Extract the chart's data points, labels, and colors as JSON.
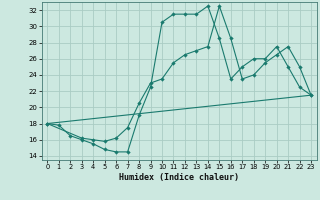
{
  "title": "",
  "xlabel": "Humidex (Indice chaleur)",
  "bg_color": "#cce8e0",
  "grid_color": "#aaccC4",
  "line_color": "#1a7a6e",
  "xlim": [
    -0.5,
    23.5
  ],
  "ylim": [
    13.5,
    33.0
  ],
  "xticks": [
    0,
    1,
    2,
    3,
    4,
    5,
    6,
    7,
    8,
    9,
    10,
    11,
    12,
    13,
    14,
    15,
    16,
    17,
    18,
    19,
    20,
    21,
    22,
    23
  ],
  "yticks": [
    14,
    16,
    18,
    20,
    22,
    24,
    26,
    28,
    30,
    32
  ],
  "line1_x": [
    0,
    1,
    2,
    3,
    4,
    5,
    6,
    7,
    8,
    9,
    10,
    11,
    12,
    13,
    14,
    15,
    16,
    17,
    18,
    19,
    20,
    21,
    22,
    23
  ],
  "line1_y": [
    18,
    17.8,
    16.5,
    16,
    15.5,
    14.8,
    14.5,
    14.5,
    19,
    22.5,
    30.5,
    31.5,
    31.5,
    31.5,
    32.5,
    28.5,
    23.5,
    25.0,
    26,
    26,
    27.5,
    25,
    22.5,
    21.5
  ],
  "line2_x": [
    0,
    3,
    4,
    5,
    6,
    7,
    8,
    9,
    10,
    11,
    12,
    13,
    14,
    15,
    16,
    17,
    18,
    19,
    20,
    21,
    22,
    23
  ],
  "line2_y": [
    18,
    16.2,
    16.0,
    15.8,
    16.2,
    17.5,
    20.5,
    23.0,
    23.5,
    25.5,
    26.5,
    27.0,
    27.5,
    32.5,
    28.5,
    23.5,
    24.0,
    25.5,
    26.5,
    27.5,
    25.0,
    21.5
  ],
  "line3_x": [
    0,
    23
  ],
  "line3_y": [
    18,
    21.5
  ]
}
